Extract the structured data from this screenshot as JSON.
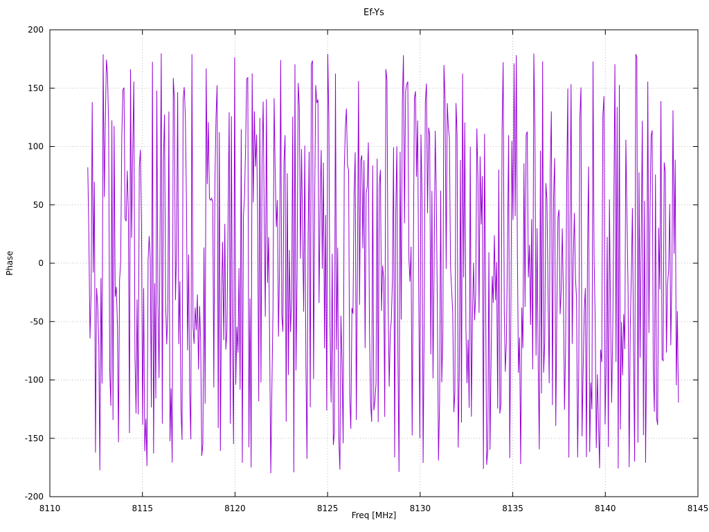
{
  "page": {
    "background": "#ffffff"
  },
  "chart_data": {
    "type": "line",
    "title": "Ef-Ys",
    "xlabel": "Freq [MHz]",
    "ylabel": "Phase",
    "xlim": [
      8110,
      8145
    ],
    "ylim": [
      -200,
      200
    ],
    "x_ticks": [
      8110,
      8115,
      8120,
      8125,
      8130,
      8135,
      8140,
      8145
    ],
    "y_ticks": [
      -200,
      -150,
      -100,
      -50,
      0,
      50,
      100,
      150,
      200
    ],
    "grid": true,
    "grid_style": "dotted",
    "grid_color": "#b8b8b8",
    "border_color": "#000000",
    "legend_position": "none",
    "series": [
      {
        "name": "Ef-Ys",
        "color": "#9400d3",
        "line_width": 1,
        "x_start": 8112.05,
        "x_end": 8143.95,
        "n_points": 540,
        "y_min": -180,
        "y_max": 180,
        "y_behavior": "wrapped phase noise, values uniformly spanning -180 to 180 deg across the whole band",
        "seed": 1337
      }
    ]
  }
}
